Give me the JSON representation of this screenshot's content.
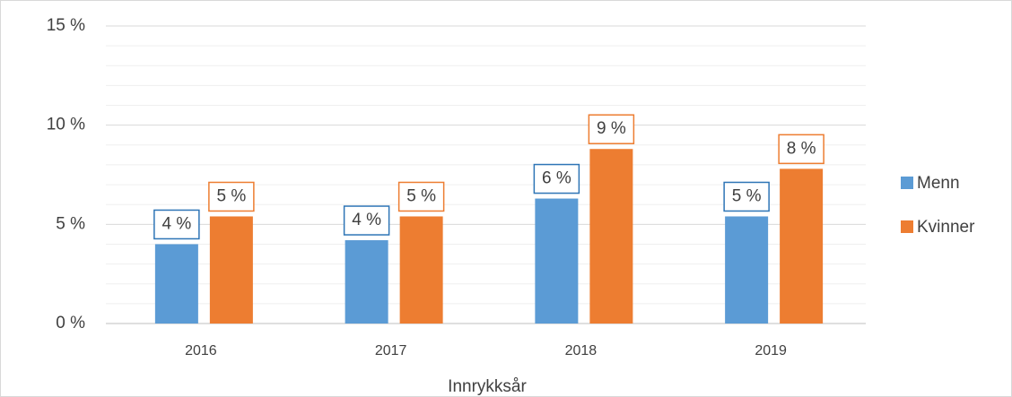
{
  "chart_data": {
    "type": "bar",
    "x_label": "Innrykksår",
    "categories": [
      "2016",
      "2017",
      "2018",
      "2019"
    ],
    "series": [
      {
        "name": "Menn",
        "color": "#5b9bd5",
        "values": [
          4.0,
          4.2,
          6.3,
          5.4
        ],
        "value_labels": [
          "4 %",
          "4 %",
          "6 %",
          "5 %"
        ]
      },
      {
        "name": "Kvinner",
        "color": "#ed7d31",
        "values": [
          5.4,
          5.4,
          8.8,
          7.8
        ],
        "value_labels": [
          "5 %",
          "5 %",
          "9 %",
          "8 %"
        ]
      }
    ],
    "ylim": [
      0,
      15
    ],
    "yticks": [
      {
        "value": 0,
        "label": "0 %"
      },
      {
        "value": 5,
        "label": "5 %"
      },
      {
        "value": 10,
        "label": "10 %"
      },
      {
        "value": 15,
        "label": "15 %"
      }
    ],
    "minor_yticks": [
      1,
      2,
      3,
      4,
      6,
      7,
      8,
      9,
      11,
      12,
      13,
      14
    ],
    "grid": true,
    "legend": "right"
  }
}
